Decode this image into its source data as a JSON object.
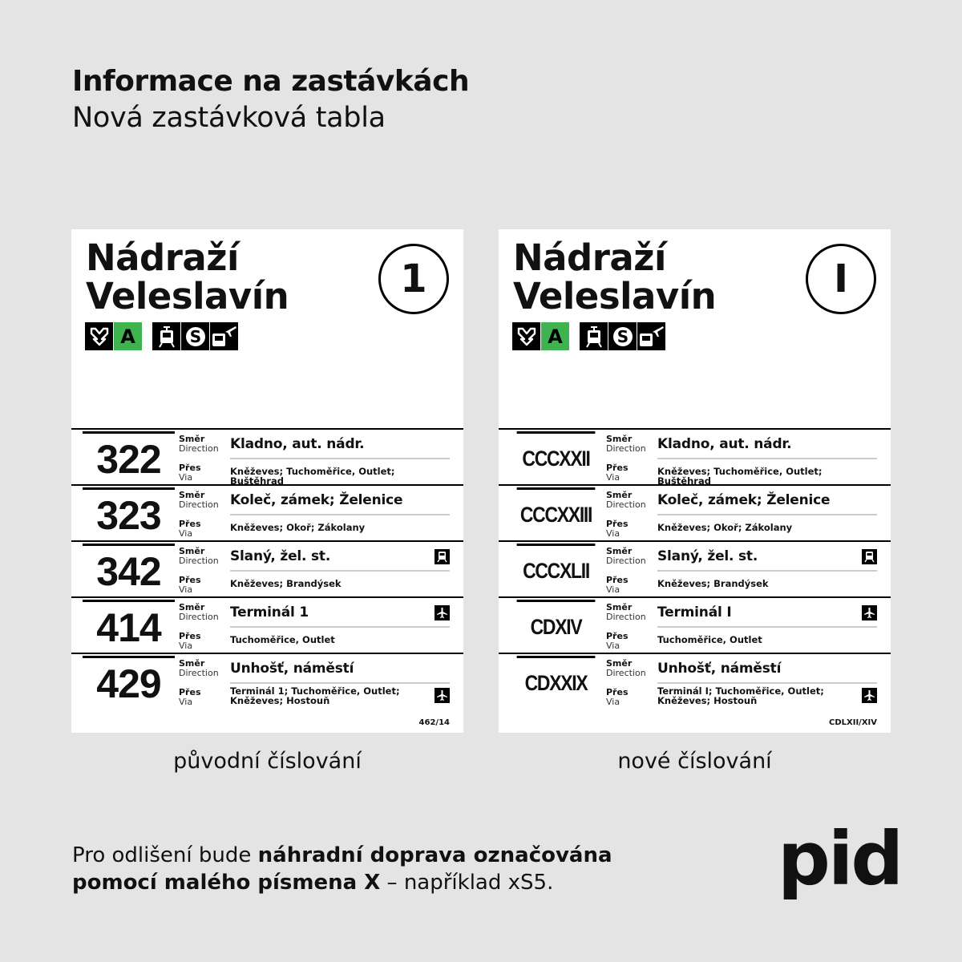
{
  "header": {
    "title": "Informace na zastávkách",
    "subtitle": "Nová zastávková tabla"
  },
  "boards": [
    {
      "stop_name_line1": "Nádraží",
      "stop_name_line2": "Veleslavín",
      "post_number": "1",
      "metro_line": "A",
      "lines": [
        {
          "number": "322",
          "direction_label": "Směr",
          "direction_label_en": "Direction",
          "destination": "Kladno, aut. nádr.",
          "via_label": "Přes",
          "via_label_en": "Via",
          "via": "Kněževes; Tuchoměřice, Outlet; Buštěhrad",
          "icon": ""
        },
        {
          "number": "323",
          "direction_label": "Směr",
          "direction_label_en": "Direction",
          "destination": "Koleč, zámek; Želenice",
          "via_label": "Přes",
          "via_label_en": "Via",
          "via": "Kněževes; Okoř; Zákolany",
          "icon": ""
        },
        {
          "number": "342",
          "direction_label": "Směr",
          "direction_label_en": "Direction",
          "destination": "Slaný, žel. st.",
          "via_label": "Přes",
          "via_label_en": "Via",
          "via": "Kněževes; Brandýsek",
          "icon": "train-icon"
        },
        {
          "number": "414",
          "direction_label": "Směr",
          "direction_label_en": "Direction",
          "destination": "Terminál 1",
          "via_label": "Přes",
          "via_label_en": "Via",
          "via": "Tuchoměřice, Outlet",
          "icon": "airplane-icon"
        },
        {
          "number": "429",
          "direction_label": "Směr",
          "direction_label_en": "Direction",
          "destination": "Unhošť, náměstí",
          "via_label": "Přes",
          "via_label_en": "Via",
          "via": "Terminál 1; Tuchoměřice, Outlet;",
          "via2": "Kněževes; Hostouň",
          "icon": "airplane-icon"
        }
      ],
      "code": "462/14",
      "caption": "původní číslování"
    },
    {
      "stop_name_line1": "Nádraží",
      "stop_name_line2": "Veleslavín",
      "post_number": "I",
      "metro_line": "A",
      "lines": [
        {
          "number": "CCCXXII",
          "direction_label": "Směr",
          "direction_label_en": "Direction",
          "destination": "Kladno, aut. nádr.",
          "via_label": "Přes",
          "via_label_en": "Via",
          "via": "Kněževes; Tuchoměřice, Outlet; Buštěhrad",
          "icon": ""
        },
        {
          "number": "CCCXXIII",
          "direction_label": "Směr",
          "direction_label_en": "Direction",
          "destination": "Koleč, zámek; Želenice",
          "via_label": "Přes",
          "via_label_en": "Via",
          "via": "Kněževes; Okoř; Zákolany",
          "icon": ""
        },
        {
          "number": "CCCXLII",
          "direction_label": "Směr",
          "direction_label_en": "Direction",
          "destination": "Slaný, žel. st.",
          "via_label": "Přes",
          "via_label_en": "Via",
          "via": "Kněževes; Brandýsek",
          "icon": "train-icon"
        },
        {
          "number": "CDXIV",
          "direction_label": "Směr",
          "direction_label_en": "Direction",
          "destination": "Terminál I",
          "via_label": "Přes",
          "via_label_en": "Via",
          "via": "Tuchoměřice, Outlet",
          "icon": "airplane-icon"
        },
        {
          "number": "CDXXIX",
          "direction_label": "Směr",
          "direction_label_en": "Direction",
          "destination": "Unhošť, náměstí",
          "via_label": "Přes",
          "via_label_en": "Via",
          "via": "Terminál I; Tuchoměřice, Outlet;",
          "via2": "Kněževes; Hostouň",
          "icon": "airplane-icon"
        }
      ],
      "code": "CDLXII/XIV",
      "caption": "nové číslování"
    }
  ],
  "footer": {
    "part1": "Pro odlišení bude ",
    "part2": "náhradní doprava označována",
    "part3": "pomocí malého písmena X",
    "part4": " – například xS5."
  },
  "logo": "pid",
  "colors": {
    "background": "#e4e4e4",
    "metro_a": "#3fb34f"
  }
}
